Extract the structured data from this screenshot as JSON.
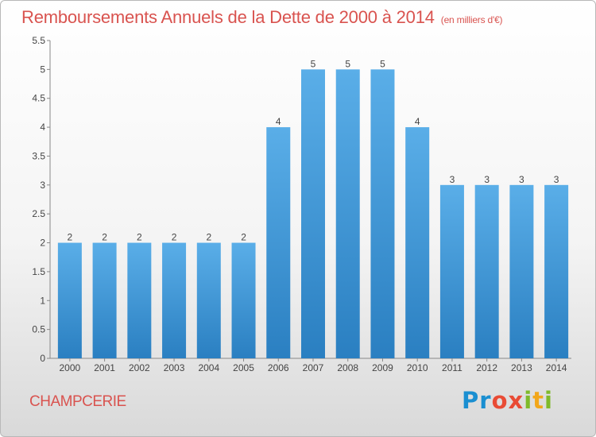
{
  "header": {
    "title": "Remboursements Annuels de la Dette de 2000 à 2014",
    "subtitle": "(en milliers d'€)"
  },
  "footer": {
    "commune": "CHAMPCERIE",
    "logo": "Proxiti"
  },
  "colors": {
    "title": "#d9534f",
    "bar_light": "#5aaee8",
    "bar_dark": "#2a7fc1"
  },
  "chart_data": {
    "type": "bar",
    "categories": [
      "2000",
      "2001",
      "2002",
      "2003",
      "2004",
      "2005",
      "2006",
      "2007",
      "2008",
      "2009",
      "2010",
      "2011",
      "2012",
      "2013",
      "2014"
    ],
    "values": [
      2,
      2,
      2,
      2,
      2,
      2,
      4,
      5,
      5,
      5,
      4,
      3,
      3,
      3,
      3
    ],
    "title": "Remboursements Annuels de la Dette de 2000 à 2014",
    "ylim": [
      0,
      5.5
    ],
    "yticks": [
      "0",
      "0.5",
      "1",
      "1.5",
      "2",
      "2.5",
      "3",
      "3.5",
      "4",
      "4.5",
      "5",
      "5.5"
    ],
    "grid": false,
    "legend": "none"
  }
}
